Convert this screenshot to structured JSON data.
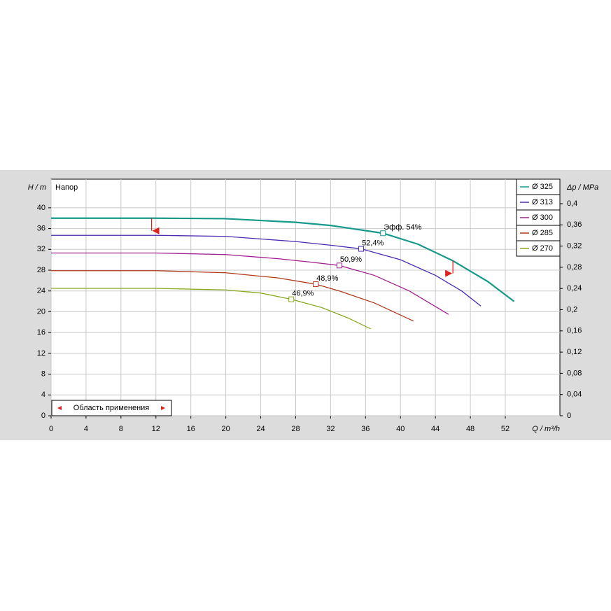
{
  "chart_data": {
    "type": "line",
    "title": "Напор",
    "y_label": "H / m",
    "x_label": "Q / m³/h",
    "y2_label": "Δp / MPa",
    "xlim": [
      0,
      58.25
    ],
    "ylim": [
      0,
      45.5
    ],
    "y2lim": [
      0,
      0.4462
    ],
    "xticks": [
      0,
      4,
      8,
      12,
      16,
      20,
      24,
      28,
      32,
      36,
      40,
      44,
      48,
      52
    ],
    "yticks": [
      0,
      4,
      8,
      12,
      16,
      20,
      24,
      28,
      32,
      36,
      40
    ],
    "y2ticks": [
      0,
      {
        "value": 0.04,
        "label": "0,04"
      },
      {
        "value": 0.08,
        "label": "0,08"
      },
      {
        "value": 0.12,
        "label": "0,12"
      },
      {
        "value": 0.16,
        "label": "0,16"
      },
      {
        "value": 0.2,
        "label": "0,2"
      },
      {
        "value": 0.24,
        "label": "0,24"
      },
      {
        "value": 0.28,
        "label": "0,28"
      },
      {
        "value": 0.32,
        "label": "0,32"
      },
      {
        "value": 0.36,
        "label": "0,36"
      },
      {
        "value": 0.4,
        "label": "0,4"
      }
    ],
    "grid": true,
    "legend": "top-right",
    "series": [
      {
        "name": "Ø 325",
        "color": "#17998a",
        "x": [
          0,
          12,
          20,
          28,
          32,
          38,
          42,
          46,
          50,
          53
        ],
        "values": [
          38,
          38,
          37.9,
          37.2,
          36.6,
          35.1,
          33,
          29.8,
          25.8,
          22
        ],
        "efficiency_point": {
          "x": 38,
          "y": 35.1,
          "label": "Эфф.  54%"
        }
      },
      {
        "name": "Ø 313",
        "color": "#4a2ab0",
        "x": [
          0,
          12,
          20,
          28,
          32,
          35.5,
          40,
          44,
          47,
          49.2
        ],
        "values": [
          34.7,
          34.7,
          34.5,
          33.5,
          32.8,
          32.1,
          30,
          27,
          24,
          21.1
        ],
        "efficiency_point": {
          "x": 35.5,
          "y": 32.1,
          "label": "52,4%"
        }
      },
      {
        "name": "Ø 300",
        "color": "#a0208f",
        "x": [
          0,
          12,
          20,
          26,
          30,
          33,
          37,
          41,
          45.5
        ],
        "values": [
          31.3,
          31.3,
          31,
          30.2,
          29.5,
          28.9,
          27,
          24,
          19.5
        ],
        "efficiency_point": {
          "x": 33,
          "y": 28.9,
          "label": "50,9%"
        }
      },
      {
        "name": "Ø 285",
        "color": "#b03a1a",
        "x": [
          0,
          12,
          20,
          26,
          30.3,
          33,
          37,
          41.5
        ],
        "values": [
          27.9,
          27.9,
          27.5,
          26.5,
          25.3,
          24,
          21.7,
          18.2
        ],
        "efficiency_point": {
          "x": 30.3,
          "y": 25.3,
          "label": "48,9%"
        }
      },
      {
        "name": "Ø 270",
        "color": "#8aa820",
        "x": [
          0,
          12,
          20,
          24,
          27.5,
          31,
          34,
          36.6
        ],
        "values": [
          24.5,
          24.5,
          24.2,
          23.6,
          22.4,
          20.8,
          18.8,
          16.7
        ],
        "efficiency_point": {
          "x": 27.5,
          "y": 22.4,
          "label": "46,9%"
        }
      }
    ],
    "application_range": {
      "label": "Область применения",
      "q_min": 11.5,
      "q_max": 46,
      "color": "#e0201a"
    }
  }
}
